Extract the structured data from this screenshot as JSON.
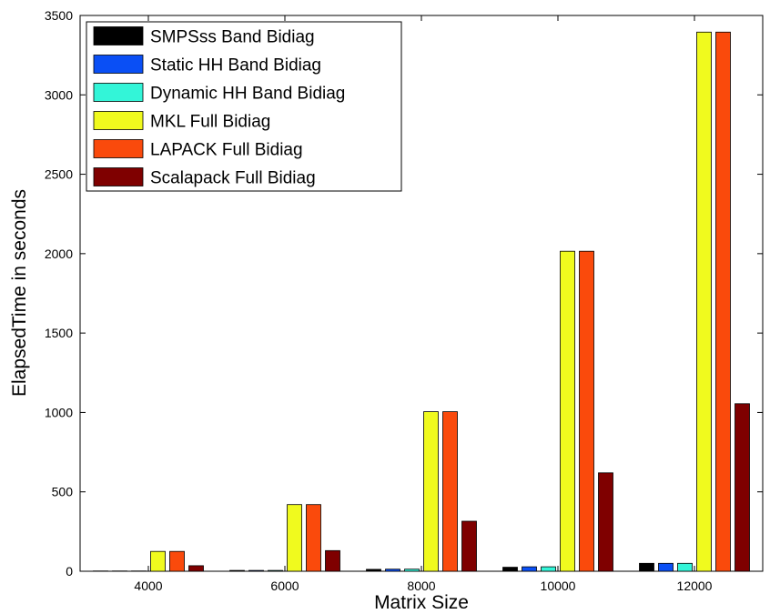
{
  "chart_data": {
    "type": "bar",
    "categories": [
      "4000",
      "6000",
      "8000",
      "10000",
      "12000"
    ],
    "series": [
      {
        "name": "SMPSss Band Bidiag",
        "color": "#000000",
        "values": [
          2,
          5,
          12,
          25,
          50
        ]
      },
      {
        "name": "Static HH Band Bidiag",
        "color": "#0a4ff5",
        "values": [
          2,
          5,
          13,
          28,
          50
        ]
      },
      {
        "name": "Dynamic HH Band Bidiag",
        "color": "#33f5d8",
        "values": [
          2,
          5,
          13,
          28,
          50
        ]
      },
      {
        "name": "MKL Full Bidiag",
        "color": "#f0fa1e",
        "values": [
          125,
          420,
          1005,
          2015,
          3395
        ]
      },
      {
        "name": "LAPACK Full Bidiag",
        "color": "#fa4a0c",
        "values": [
          125,
          420,
          1005,
          2015,
          3395
        ]
      },
      {
        "name": "Scalapack Full Bidiag",
        "color": "#7f0000",
        "values": [
          35,
          130,
          315,
          620,
          1055
        ]
      }
    ],
    "xlabel": "Matrix Size",
    "ylabel": "ElapsedTime in seconds",
    "ylim": [
      0,
      3500
    ],
    "yticks": [
      "0",
      "500",
      "1000",
      "1500",
      "2000",
      "2500",
      "3000",
      "3500"
    ],
    "grid": false,
    "legend_position": "top-left"
  }
}
